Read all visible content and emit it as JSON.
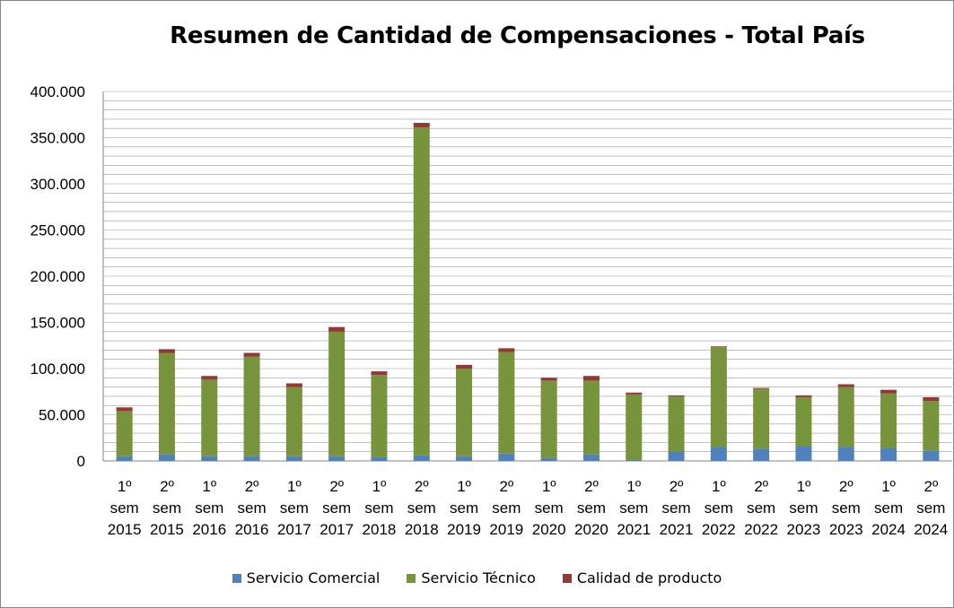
{
  "chart_data": {
    "type": "bar",
    "stacked": true,
    "title": "Resumen de Cantidad de Compensaciones - Total País",
    "xlabel": "",
    "ylabel": "",
    "ylim": [
      0,
      400000
    ],
    "ytick_labels": [
      "0",
      "50.000",
      "100.000",
      "150.000",
      "200.000",
      "250.000",
      "300.000",
      "350.000",
      "400.000"
    ],
    "ytick_values": [
      0,
      50000,
      100000,
      150000,
      200000,
      250000,
      300000,
      350000,
      400000
    ],
    "grid": true,
    "legend_position": "bottom",
    "categories": [
      [
        "1º",
        "sem",
        "2015"
      ],
      [
        "2º",
        "sem",
        "2015"
      ],
      [
        "1º",
        "sem",
        "2016"
      ],
      [
        "2º",
        "sem",
        "2016"
      ],
      [
        "1º",
        "sem",
        "2017"
      ],
      [
        "2º",
        "sem",
        "2017"
      ],
      [
        "1º",
        "sem",
        "2018"
      ],
      [
        "2º",
        "sem",
        "2018"
      ],
      [
        "1º",
        "sem",
        "2019"
      ],
      [
        "2º",
        "sem",
        "2019"
      ],
      [
        "1º",
        "sem",
        "2020"
      ],
      [
        "2º",
        "sem",
        "2020"
      ],
      [
        "1º",
        "sem",
        "2021"
      ],
      [
        "2º",
        "sem",
        "2021"
      ],
      [
        "1º",
        "sem",
        "2022"
      ],
      [
        "2º",
        "sem",
        "2022"
      ],
      [
        "1º",
        "sem",
        "2023"
      ],
      [
        "2º",
        "sem",
        "2023"
      ],
      [
        "1º",
        "sem",
        "2024"
      ],
      [
        "2º",
        "sem",
        "2024"
      ]
    ],
    "series": [
      {
        "name": "Servicio Comercial",
        "color": "#4f81bd",
        "values": [
          5000,
          7000,
          5000,
          5000,
          5000,
          5000,
          4000,
          6000,
          5000,
          8000,
          3000,
          7000,
          1000,
          10000,
          15000,
          13000,
          16000,
          15000,
          14000,
          11000
        ]
      },
      {
        "name": "Servicio Técnico",
        "color": "#77933c",
        "values": [
          49000,
          110000,
          83000,
          108000,
          75000,
          135000,
          89000,
          355000,
          95000,
          110000,
          84000,
          80000,
          71000,
          60000,
          108000,
          65000,
          53000,
          65000,
          59000,
          54000
        ]
      },
      {
        "name": "Calidad de producto",
        "color": "#953735",
        "values": [
          4000,
          4000,
          4000,
          4000,
          4000,
          5000,
          4000,
          5000,
          4000,
          4000,
          3000,
          5000,
          2000,
          1000,
          1000,
          1000,
          2000,
          3000,
          4000,
          4000
        ]
      }
    ]
  }
}
